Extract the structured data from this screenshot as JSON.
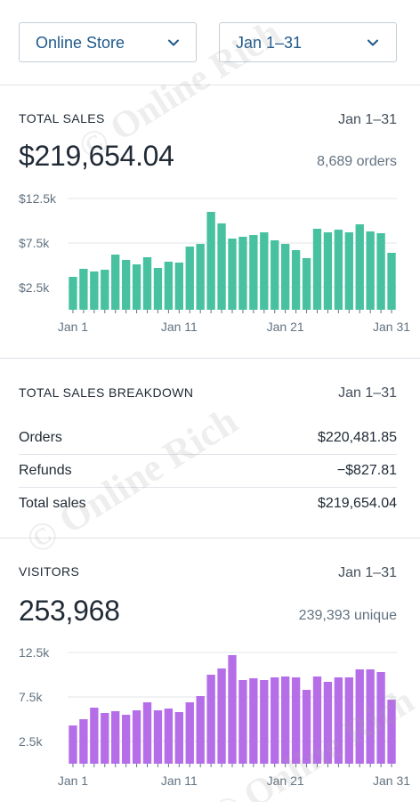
{
  "filters": {
    "store_label": "Online Store",
    "date_label": "Jan 1–31",
    "chevron_icon": "chevron-down-icon"
  },
  "total_sales": {
    "title": "TOTAL SALES",
    "range": "Jan 1–31",
    "value": "$219,654.04",
    "orders": "8,689 orders"
  },
  "breakdown": {
    "title": "TOTAL SALES BREAKDOWN",
    "range": "Jan 1–31",
    "rows": [
      {
        "label": "Orders",
        "value": "$220,481.85"
      },
      {
        "label": "Refunds",
        "value": "−$827.81"
      },
      {
        "label": "Total sales",
        "value": "$219,654.04"
      }
    ]
  },
  "visitors": {
    "title": "VISITORS",
    "range": "Jan 1–31",
    "value": "253,968",
    "unique": "239,393 unique"
  },
  "watermark": {
    "text": "© Online Rich"
  },
  "chart_data": [
    {
      "type": "bar",
      "color": "#50b83c",
      "fill": "#47c1a0",
      "ylim": [
        0,
        12500
      ],
      "yticks": [
        {
          "value": 2500,
          "label": "$2.5k"
        },
        {
          "value": 7500,
          "label": "$7.5k"
        },
        {
          "value": 12500,
          "label": "$12.5k"
        }
      ],
      "xtick_labels": [
        {
          "index": 0,
          "label": "Jan 1"
        },
        {
          "index": 10,
          "label": "Jan 11"
        },
        {
          "index": 20,
          "label": "Jan 21"
        },
        {
          "index": 30,
          "label": "Jan 31"
        }
      ],
      "categories": [
        "Jan 1",
        "Jan 2",
        "Jan 3",
        "Jan 4",
        "Jan 5",
        "Jan 6",
        "Jan 7",
        "Jan 8",
        "Jan 9",
        "Jan 10",
        "Jan 11",
        "Jan 12",
        "Jan 13",
        "Jan 14",
        "Jan 15",
        "Jan 16",
        "Jan 17",
        "Jan 18",
        "Jan 19",
        "Jan 20",
        "Jan 21",
        "Jan 22",
        "Jan 23",
        "Jan 24",
        "Jan 25",
        "Jan 26",
        "Jan 27",
        "Jan 28",
        "Jan 29",
        "Jan 30",
        "Jan 31"
      ],
      "values": [
        3700,
        4600,
        4300,
        4500,
        6200,
        5600,
        5100,
        5900,
        4700,
        5400,
        5300,
        7100,
        7400,
        11000,
        9700,
        8000,
        8200,
        8400,
        8700,
        7800,
        7400,
        6700,
        5800,
        9100,
        8700,
        9000,
        8700,
        9600,
        8800,
        8600,
        6400
      ]
    },
    {
      "type": "bar",
      "fill": "#b56ee8",
      "ylim": [
        0,
        12500
      ],
      "yticks": [
        {
          "value": 2500,
          "label": "2.5k"
        },
        {
          "value": 7500,
          "label": "7.5k"
        },
        {
          "value": 12500,
          "label": "12.5k"
        }
      ],
      "xtick_labels": [
        {
          "index": 0,
          "label": "Jan 1"
        },
        {
          "index": 10,
          "label": "Jan 11"
        },
        {
          "index": 20,
          "label": "Jan 21"
        },
        {
          "index": 30,
          "label": "Jan 31"
        }
      ],
      "categories": [
        "Jan 1",
        "Jan 2",
        "Jan 3",
        "Jan 4",
        "Jan 5",
        "Jan 6",
        "Jan 7",
        "Jan 8",
        "Jan 9",
        "Jan 10",
        "Jan 11",
        "Jan 12",
        "Jan 13",
        "Jan 14",
        "Jan 15",
        "Jan 16",
        "Jan 17",
        "Jan 18",
        "Jan 19",
        "Jan 20",
        "Jan 21",
        "Jan 22",
        "Jan 23",
        "Jan 24",
        "Jan 25",
        "Jan 26",
        "Jan 27",
        "Jan 28",
        "Jan 29",
        "Jan 30",
        "Jan 31"
      ],
      "values": [
        4300,
        5000,
        6300,
        5700,
        5900,
        5500,
        6000,
        6900,
        6000,
        6200,
        5800,
        6900,
        7600,
        10000,
        10700,
        12200,
        9400,
        9600,
        9400,
        9700,
        9800,
        9700,
        8300,
        9800,
        9200,
        9700,
        9700,
        10600,
        10600,
        10300,
        7200
      ]
    }
  ]
}
